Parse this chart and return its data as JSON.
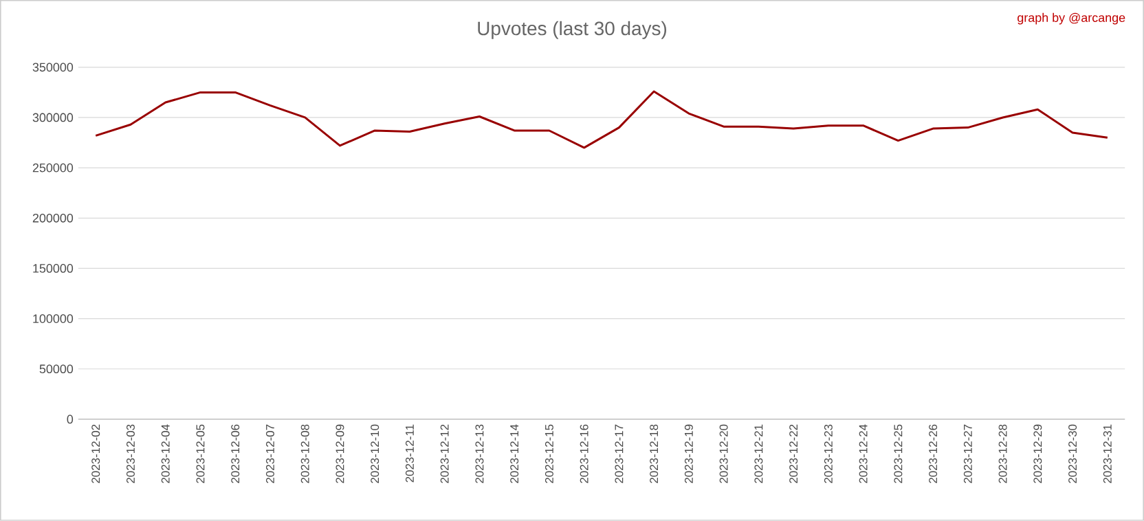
{
  "chart_data": {
    "type": "line",
    "title": "Upvotes (last 30 days)",
    "annotations": [
      "graph by @arcange"
    ],
    "categories": [
      "2023-12-02",
      "2023-12-03",
      "2023-12-04",
      "2023-12-05",
      "2023-12-06",
      "2023-12-07",
      "2023-12-08",
      "2023-12-09",
      "2023-12-10",
      "2023-12-11",
      "2023-12-12",
      "2023-12-13",
      "2023-12-14",
      "2023-12-15",
      "2023-12-16",
      "2023-12-17",
      "2023-12-18",
      "2023-12-19",
      "2023-12-20",
      "2023-12-21",
      "2023-12-22",
      "2023-12-23",
      "2023-12-24",
      "2023-12-25",
      "2023-12-26",
      "2023-12-27",
      "2023-12-28",
      "2023-12-29",
      "2023-12-30",
      "2023-12-31"
    ],
    "series": [
      {
        "color": "#990000",
        "values": [
          282000,
          293000,
          315000,
          325000,
          325000,
          312000,
          300000,
          272000,
          287000,
          286000,
          294000,
          301000,
          287000,
          287000,
          270000,
          290000,
          326000,
          304000,
          291000,
          291000,
          289000,
          292000,
          292000,
          277000,
          289000,
          290000,
          300000,
          308000,
          285000,
          280000
        ]
      }
    ],
    "ylim": [
      0,
      350000
    ],
    "yticks": [
      0,
      50000,
      100000,
      150000,
      200000,
      250000,
      300000,
      350000
    ],
    "grid": "y",
    "marker": "none",
    "line_style": "solid"
  }
}
